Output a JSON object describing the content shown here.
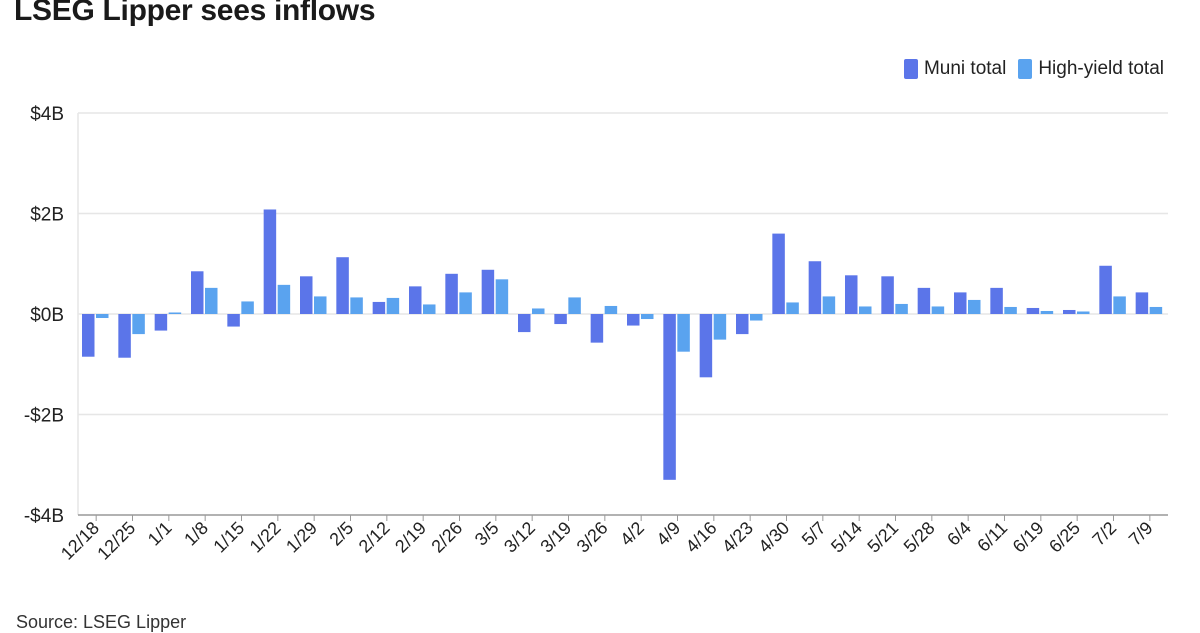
{
  "title": "LSEG Lipper sees inflows",
  "source": "Source: LSEG Lipper",
  "colors": {
    "muni": "#5b75e9",
    "hy": "#5aa3ef",
    "grid": "#e6e6e6",
    "axis": "#999999"
  },
  "chart_data": {
    "type": "bar",
    "title": "LSEG Lipper sees inflows",
    "xlabel": "",
    "ylabel": "",
    "ylim": [
      -4,
      4
    ],
    "y_unit": "billion USD",
    "yticks": [
      4,
      2,
      0,
      -2,
      -4
    ],
    "ytick_labels": [
      "$4B",
      "$2B",
      "$0B",
      "-$2B",
      "-$4B"
    ],
    "grid": true,
    "legend_position": "top-right",
    "categories": [
      "12/18",
      "12/25",
      "1/1",
      "1/8",
      "1/15",
      "1/22",
      "1/29",
      "2/5",
      "2/12",
      "2/19",
      "2/26",
      "3/5",
      "3/12",
      "3/19",
      "3/26",
      "4/2",
      "4/9",
      "4/16",
      "4/23",
      "4/30",
      "5/7",
      "5/14",
      "5/21",
      "5/28",
      "6/4",
      "6/11",
      "6/19",
      "6/25",
      "7/2",
      "7/9"
    ],
    "series": [
      {
        "name": "Muni total",
        "color": "#5b75e9",
        "values": [
          -0.85,
          -0.87,
          -0.33,
          0.85,
          -0.25,
          2.08,
          0.75,
          1.13,
          0.24,
          0.55,
          0.8,
          0.88,
          -0.36,
          -0.2,
          -0.57,
          -0.23,
          -3.3,
          -1.26,
          -0.4,
          1.6,
          1.05,
          0.77,
          0.75,
          0.52,
          0.43,
          0.52,
          0.12,
          0.08,
          0.96,
          0.43
        ]
      },
      {
        "name": "High-yield total",
        "color": "#5aa3ef",
        "values": [
          -0.08,
          -0.4,
          0.03,
          0.52,
          0.25,
          0.58,
          0.35,
          0.33,
          0.32,
          0.19,
          0.43,
          0.69,
          0.11,
          0.33,
          0.16,
          -0.1,
          -0.75,
          -0.51,
          -0.13,
          0.23,
          0.35,
          0.15,
          0.2,
          0.15,
          0.28,
          0.14,
          0.06,
          0.05,
          0.35,
          0.14
        ]
      }
    ]
  }
}
